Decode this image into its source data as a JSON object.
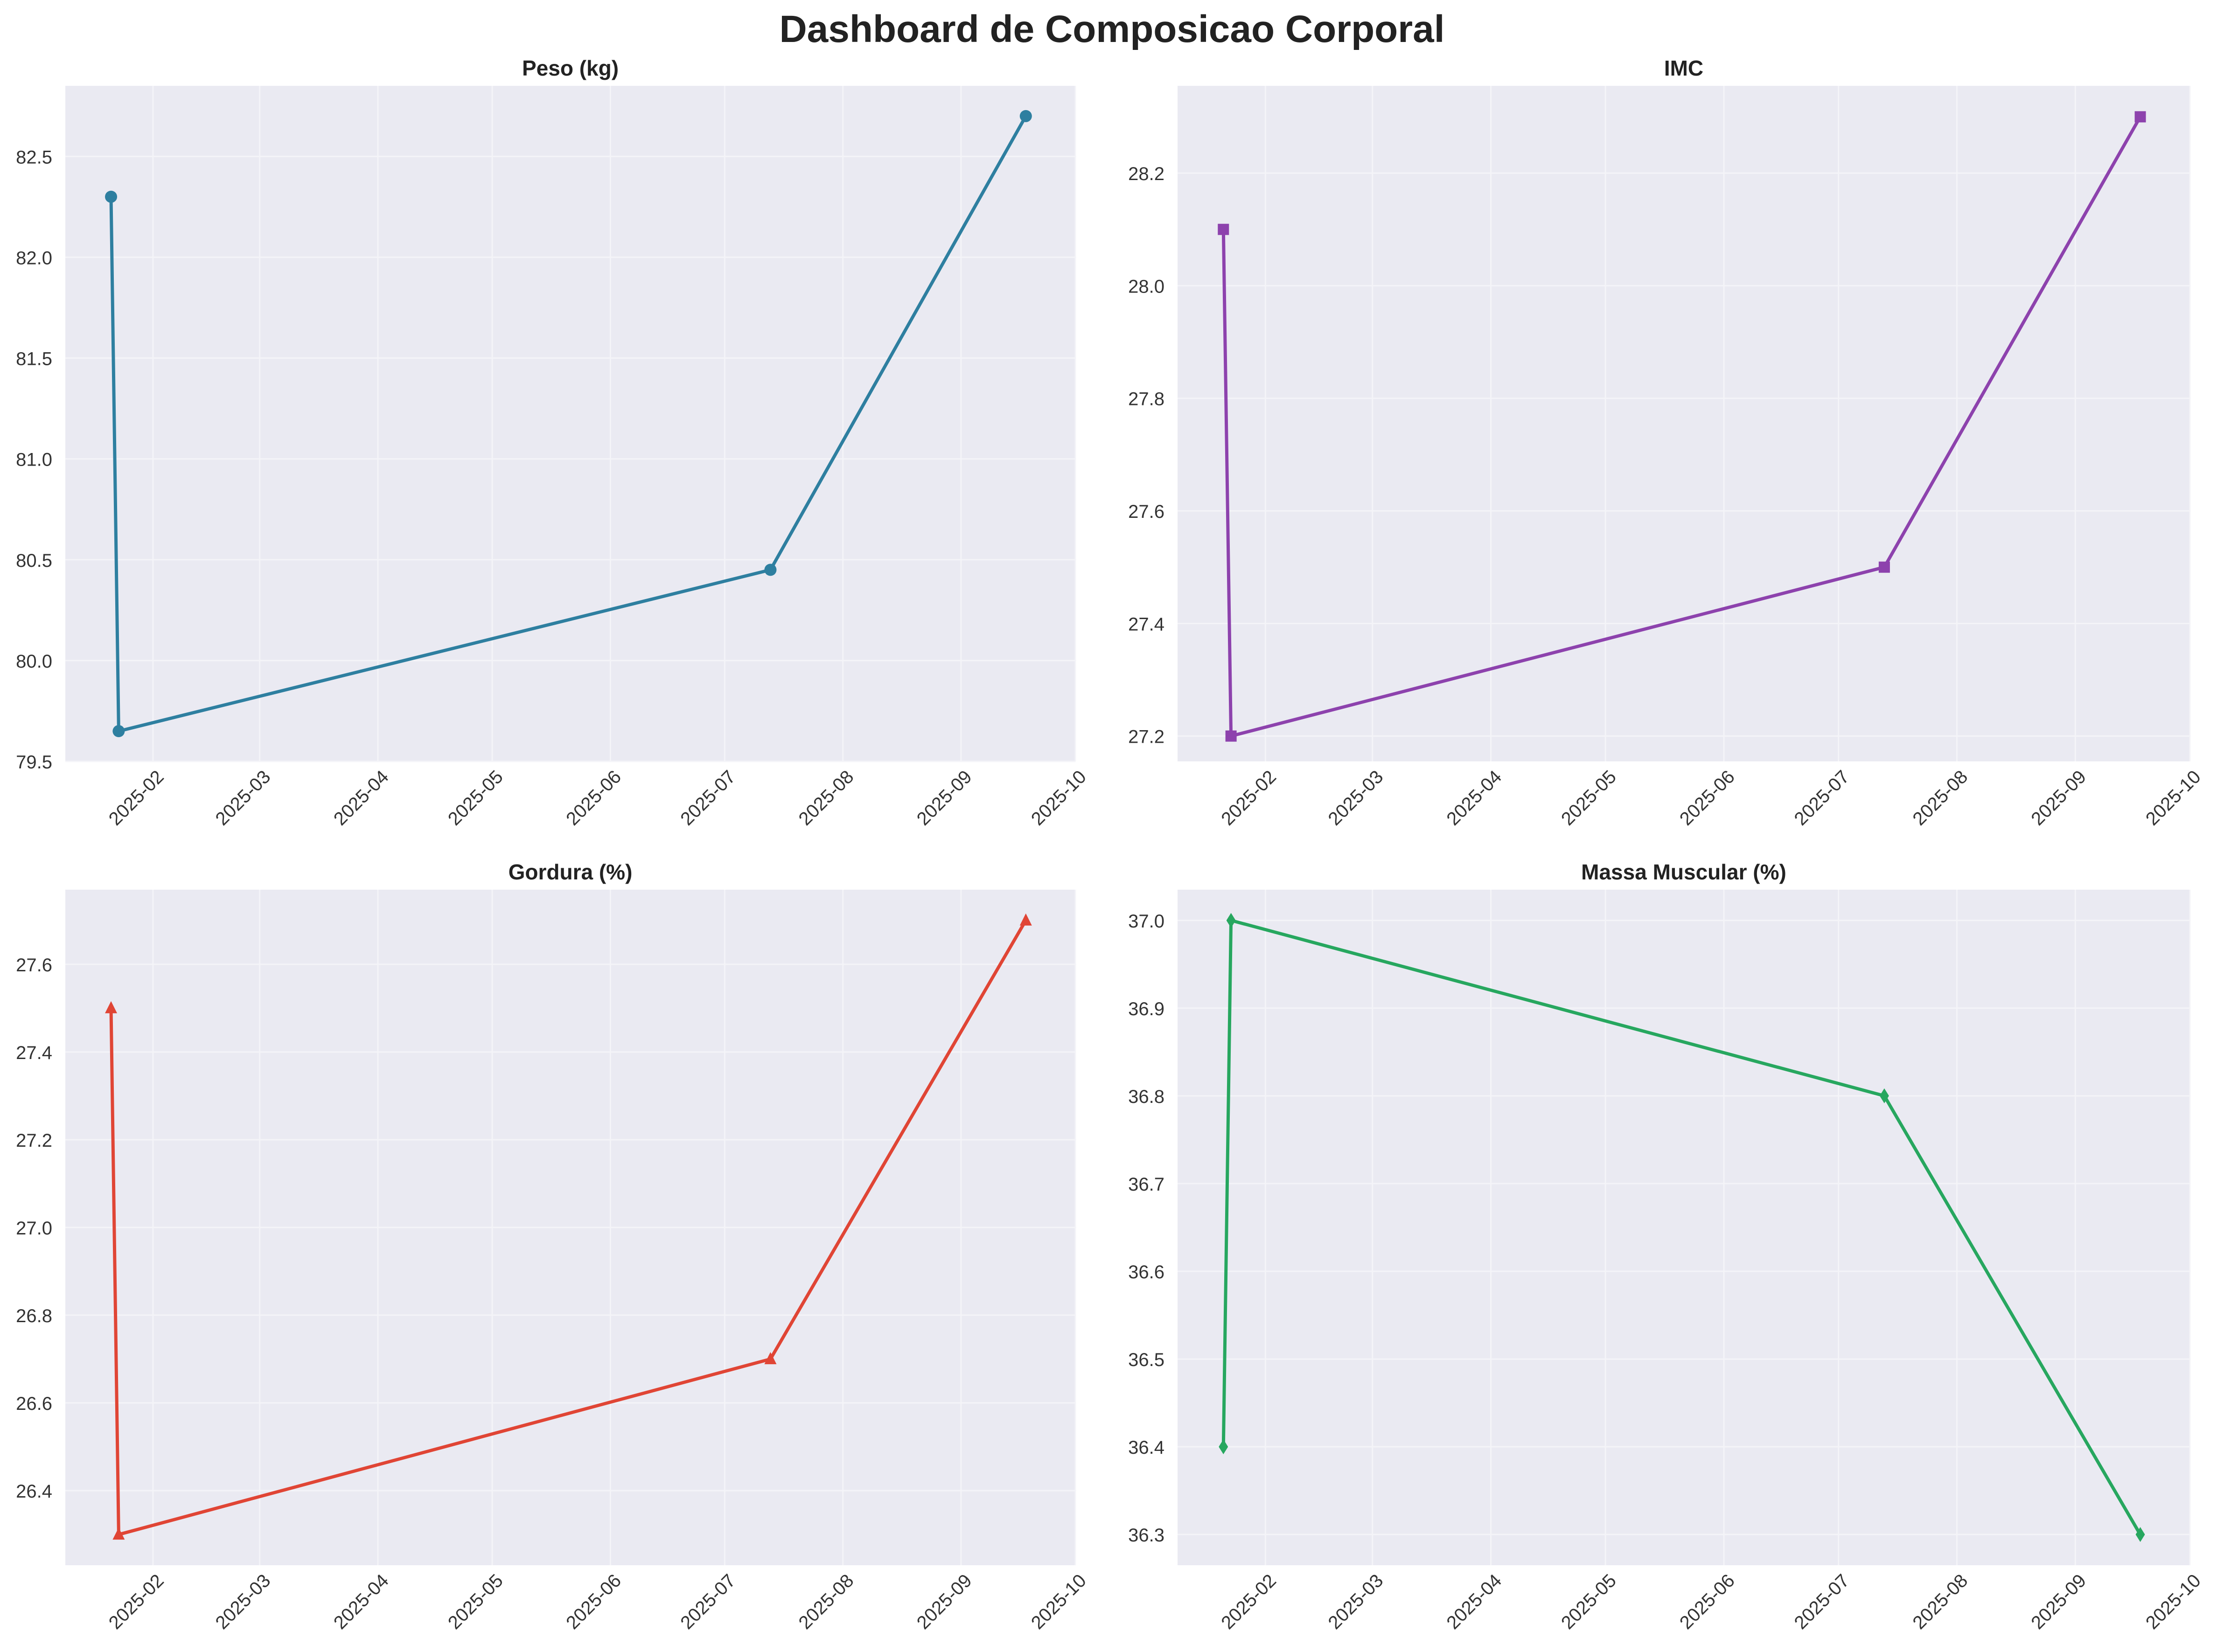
{
  "figure": {
    "title": "Dashboard de Composicao Corporal",
    "month_labels": [
      "2025-02",
      "2025-03",
      "2025-04",
      "2025-05",
      "2025-06",
      "2025-07",
      "2025-08",
      "2025-09",
      "2025-10"
    ]
  },
  "chart_data": [
    {
      "type": "line",
      "title": "Peso (kg)",
      "xlabel": "",
      "ylabel": "",
      "x_type": "date",
      "x": [
        "2025-01-21",
        "2025-01-23",
        "2025-07-13",
        "2025-09-18"
      ],
      "values": [
        82.3,
        79.65,
        80.45,
        82.7
      ],
      "marker": "circle",
      "color": "#2e7fa0",
      "xlim": [
        "2025-01-09",
        "2025-10-01"
      ],
      "ylim": [
        79.5,
        82.85
      ],
      "yticks": [
        79.5,
        80.0,
        80.5,
        81.0,
        81.5,
        82.0,
        82.5
      ],
      "ytick_labels": [
        "79.5",
        "80.0",
        "80.5",
        "81.0",
        "81.5",
        "82.0",
        "82.5"
      ],
      "grid": true
    },
    {
      "type": "line",
      "title": "IMC",
      "xlabel": "",
      "ylabel": "",
      "x_type": "date",
      "x": [
        "2025-01-21",
        "2025-01-23",
        "2025-07-13",
        "2025-09-18"
      ],
      "values": [
        28.1,
        27.2,
        27.5,
        28.3
      ],
      "marker": "square",
      "color": "#8d42ad",
      "xlim": [
        "2025-01-09",
        "2025-10-01"
      ],
      "ylim": [
        27.155,
        28.355
      ],
      "yticks": [
        27.2,
        27.4,
        27.6,
        27.8,
        28.0,
        28.2
      ],
      "ytick_labels": [
        "27.2",
        "27.4",
        "27.6",
        "27.8",
        "28.0",
        "28.2"
      ],
      "grid": true
    },
    {
      "type": "line",
      "title": "Gordura (%)",
      "xlabel": "",
      "ylabel": "",
      "x_type": "date",
      "x": [
        "2025-01-21",
        "2025-01-23",
        "2025-07-13",
        "2025-09-18"
      ],
      "values": [
        27.5,
        26.3,
        26.7,
        27.7
      ],
      "marker": "triangle",
      "color": "#e04535",
      "xlim": [
        "2025-01-09",
        "2025-10-01"
      ],
      "ylim": [
        26.23,
        27.77
      ],
      "yticks": [
        26.4,
        26.6,
        26.8,
        27.0,
        27.2,
        27.4,
        27.6
      ],
      "ytick_labels": [
        "26.4",
        "26.6",
        "26.8",
        "27.0",
        "27.2",
        "27.4",
        "27.6"
      ],
      "grid": true
    },
    {
      "type": "line",
      "title": "Massa Muscular (%)",
      "xlabel": "",
      "ylabel": "",
      "x_type": "date",
      "x": [
        "2025-01-21",
        "2025-01-23",
        "2025-07-13",
        "2025-09-18"
      ],
      "values": [
        36.4,
        37.0,
        36.8,
        36.3
      ],
      "marker": "diamond",
      "color": "#27a75f",
      "xlim": [
        "2025-01-09",
        "2025-10-01"
      ],
      "ylim": [
        36.265,
        37.035
      ],
      "yticks": [
        36.3,
        36.4,
        36.5,
        36.6,
        36.7,
        36.8,
        36.9,
        37.0
      ],
      "ytick_labels": [
        "36.3",
        "36.4",
        "36.5",
        "36.6",
        "36.7",
        "36.8",
        "36.9",
        "37.0"
      ],
      "grid": true
    }
  ]
}
